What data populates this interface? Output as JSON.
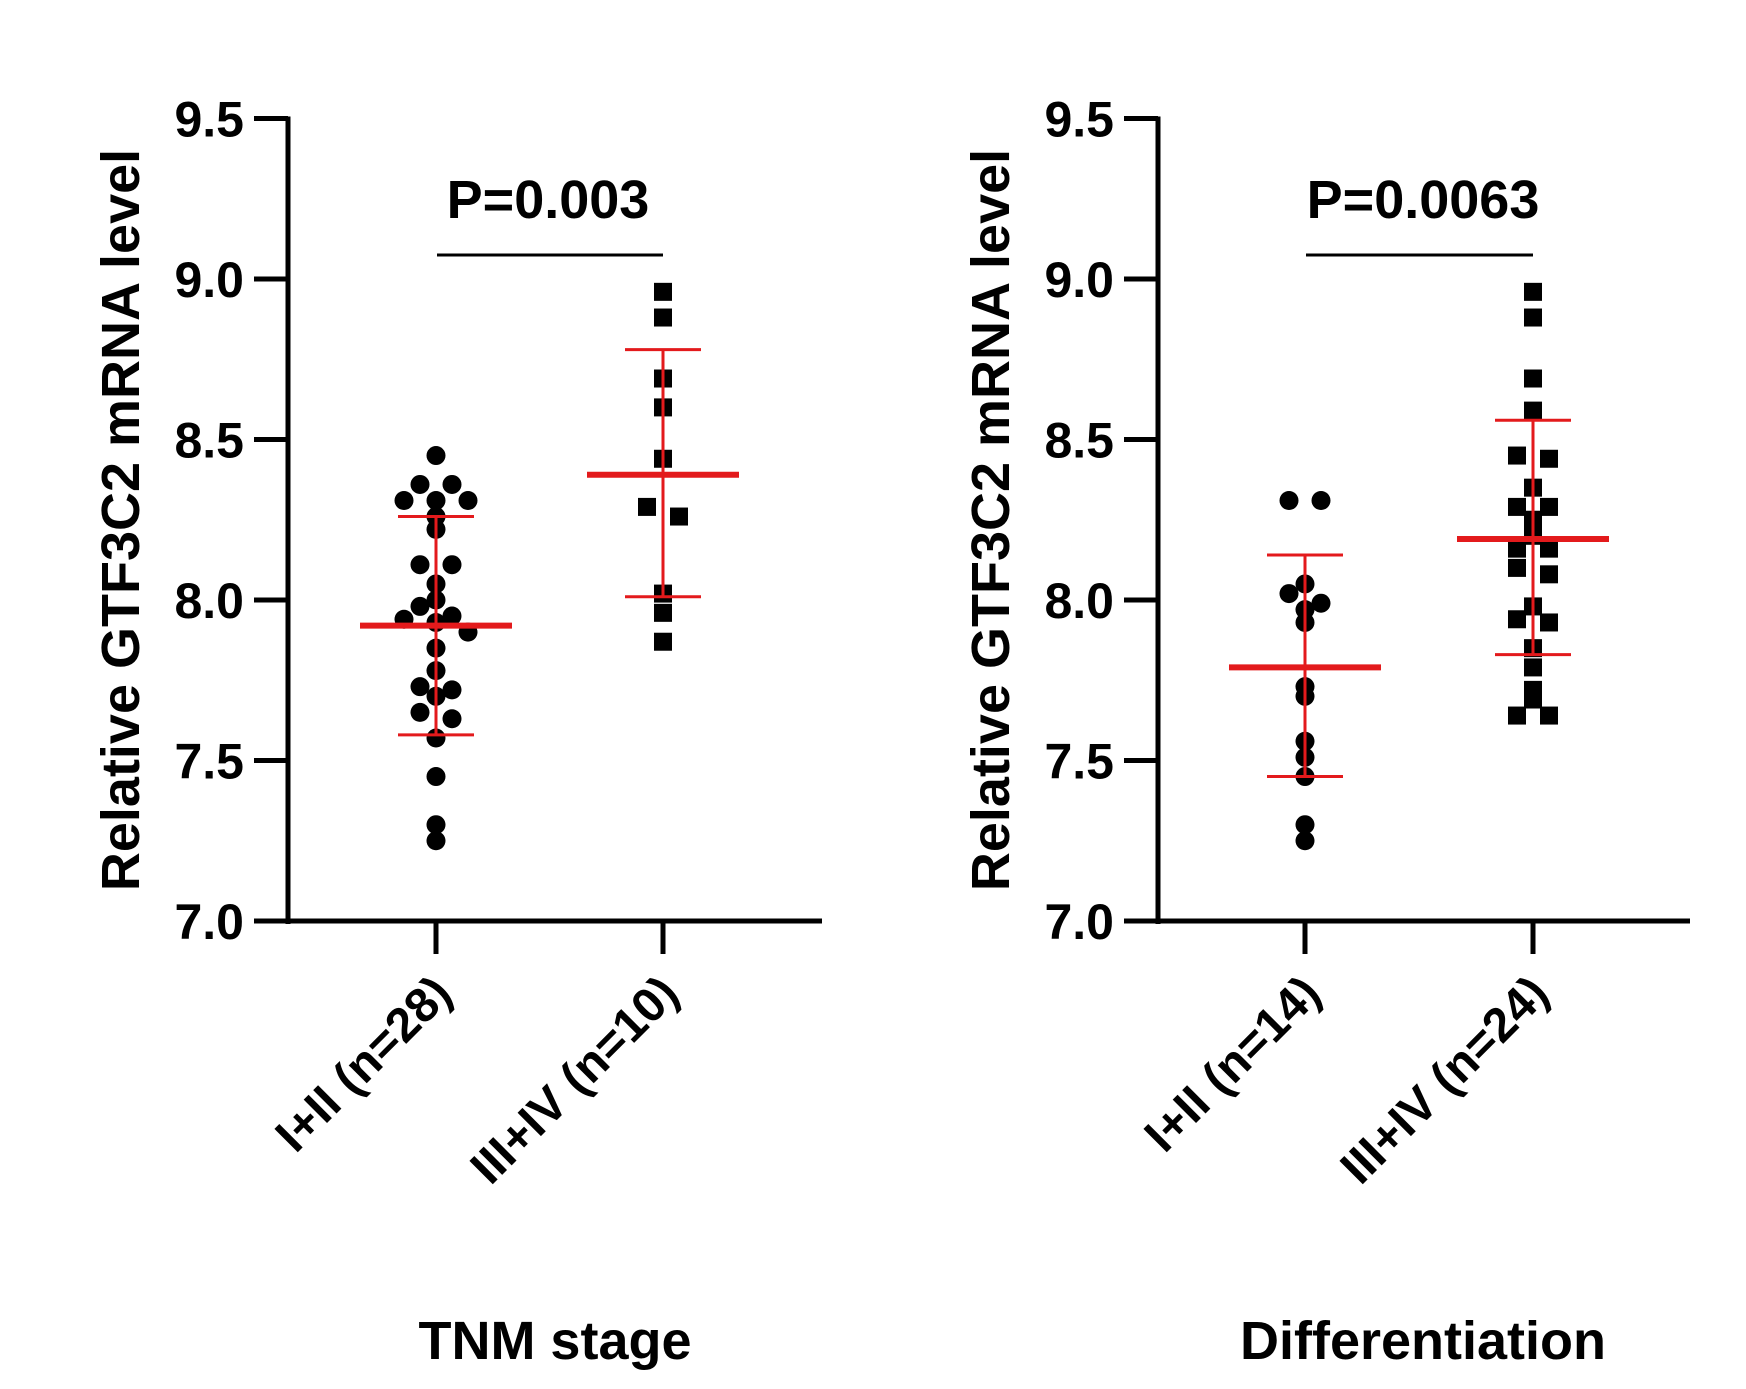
{
  "chart_data": [
    {
      "type": "scatter",
      "xlabel": "TNM stage",
      "ylabel": "Relative GTF3C2 mRNA level",
      "ylim": [
        7.0,
        9.5
      ],
      "yticks": [
        "7.0",
        "7.5",
        "8.0",
        "8.5",
        "9.0",
        "9.5"
      ],
      "categories": [
        "I+II (n=28)",
        "III+IV (n=10)"
      ],
      "annotation": "P=0.003",
      "series": [
        {
          "marker": "circle",
          "values": [
            8.45,
            8.36,
            8.36,
            8.31,
            8.31,
            8.31,
            8.26,
            8.22,
            8.11,
            8.11,
            8.05,
            8.0,
            7.98,
            7.95,
            7.94,
            7.93,
            7.9,
            7.85,
            7.78,
            7.73,
            7.72,
            7.7,
            7.65,
            7.63,
            7.57,
            7.45,
            7.3,
            7.25
          ],
          "mean": 7.92,
          "sd_upper": 8.26,
          "sd_lower": 7.58
        },
        {
          "marker": "square",
          "values": [
            8.96,
            8.88,
            8.69,
            8.6,
            8.44,
            8.29,
            8.26,
            8.02,
            7.96,
            7.87
          ],
          "mean": 8.39,
          "sd_upper": 8.78,
          "sd_lower": 8.01
        }
      ],
      "colors": {
        "points": "#000000",
        "mean_sd": "#e31a1c"
      }
    },
    {
      "type": "scatter",
      "xlabel": "Differentiation",
      "ylabel": "Relative GTF3C2 mRNA level",
      "ylim": [
        7.0,
        9.5
      ],
      "yticks": [
        "7.0",
        "7.5",
        "8.0",
        "8.5",
        "9.0",
        "9.5"
      ],
      "categories": [
        "I+II (n=14)",
        "III+IV (n=24)"
      ],
      "annotation": "P=0.0063",
      "series": [
        {
          "marker": "circle",
          "values": [
            8.31,
            8.31,
            8.05,
            8.02,
            7.99,
            7.97,
            7.93,
            7.73,
            7.7,
            7.56,
            7.51,
            7.45,
            7.3,
            7.25
          ],
          "mean": 7.79,
          "sd_upper": 8.14,
          "sd_lower": 7.45
        },
        {
          "marker": "square",
          "values": [
            8.96,
            8.88,
            8.69,
            8.59,
            8.45,
            8.44,
            8.35,
            8.29,
            8.29,
            8.25,
            8.2,
            8.16,
            8.16,
            8.1,
            8.08,
            7.98,
            7.94,
            7.93,
            7.85,
            7.79,
            7.72,
            7.69,
            7.64,
            7.64
          ],
          "mean": 8.19,
          "sd_upper": 8.56,
          "sd_lower": 7.83
        }
      ],
      "colors": {
        "points": "#000000",
        "mean_sd": "#e31a1c"
      }
    }
  ]
}
